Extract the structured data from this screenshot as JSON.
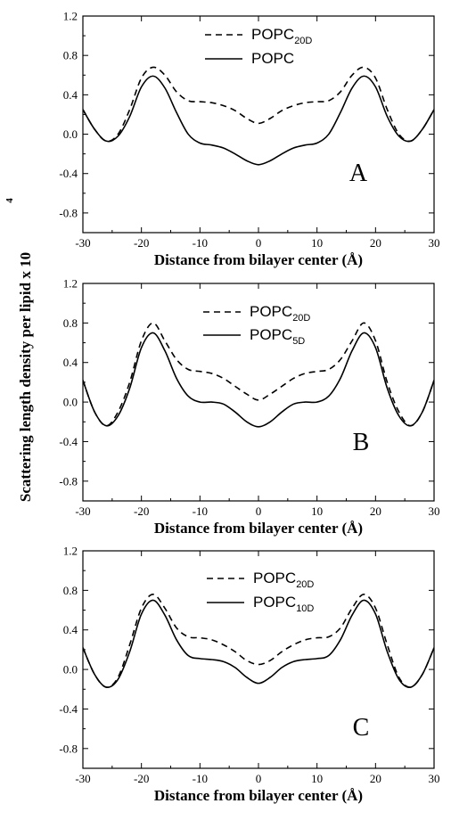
{
  "figure": {
    "ylabel_main": "Scattering length density per lipid x 10",
    "ylabel_exponent": "4"
  },
  "chart_data": [
    {
      "type": "line",
      "panel": "A",
      "xlabel": "Distance from bilayer center (Å)",
      "xlim": [
        -30,
        30
      ],
      "ylim": [
        -1.0,
        1.2
      ],
      "xticks": [
        "-30",
        "-20",
        "-10",
        "0",
        "10",
        "20",
        "30"
      ],
      "yticks": [
        "-0.8",
        "-0.4",
        "0.0",
        "0.4",
        "0.8",
        "1.2"
      ],
      "legend_position": "top-center",
      "series": [
        {
          "name": "POPC",
          "sub": "20D",
          "style": "dashed",
          "x": [
            -30,
            -28,
            -26,
            -24,
            -22,
            -20,
            -18,
            -16,
            -14,
            -12,
            -10,
            -8,
            -6,
            -4,
            -2,
            0,
            2,
            4,
            6,
            8,
            10,
            12,
            14,
            16,
            18,
            20,
            22,
            24,
            26,
            28,
            30
          ],
          "y": [
            0.25,
            0.05,
            -0.07,
            0.0,
            0.25,
            0.57,
            0.68,
            0.6,
            0.43,
            0.34,
            0.33,
            0.32,
            0.29,
            0.24,
            0.16,
            0.11,
            0.16,
            0.24,
            0.29,
            0.32,
            0.33,
            0.34,
            0.43,
            0.6,
            0.68,
            0.57,
            0.25,
            0.0,
            -0.07,
            0.05,
            0.25
          ]
        },
        {
          "name": "POPC",
          "sub": "",
          "style": "solid",
          "x": [
            -30,
            -28,
            -26,
            -24,
            -22,
            -20,
            -18,
            -16,
            -14,
            -12,
            -10,
            -8,
            -6,
            -4,
            -2,
            0,
            2,
            4,
            6,
            8,
            10,
            12,
            14,
            16,
            18,
            20,
            22,
            24,
            26,
            28,
            30
          ],
          "y": [
            0.25,
            0.05,
            -0.07,
            -0.02,
            0.18,
            0.48,
            0.59,
            0.47,
            0.22,
            0.0,
            -0.09,
            -0.11,
            -0.14,
            -0.2,
            -0.27,
            -0.31,
            -0.27,
            -0.2,
            -0.14,
            -0.11,
            -0.09,
            0.0,
            0.22,
            0.47,
            0.59,
            0.48,
            0.18,
            -0.02,
            -0.07,
            0.05,
            0.25
          ]
        }
      ]
    },
    {
      "type": "line",
      "panel": "B",
      "xlabel": "Distance from bilayer center (Å)",
      "xlim": [
        -30,
        30
      ],
      "ylim": [
        -1.0,
        1.2
      ],
      "xticks": [
        "-30",
        "-20",
        "-10",
        "0",
        "10",
        "20",
        "30"
      ],
      "yticks": [
        "-0.8",
        "-0.4",
        "0.0",
        "0.4",
        "0.8",
        "1.2"
      ],
      "legend_position": "top-center",
      "series": [
        {
          "name": "POPC",
          "sub": "20D",
          "style": "dashed",
          "x": [
            -30,
            -28,
            -26,
            -24,
            -22,
            -20,
            -18,
            -16,
            -14,
            -12,
            -10,
            -8,
            -6,
            -4,
            -2,
            0,
            2,
            4,
            6,
            8,
            10,
            12,
            14,
            16,
            18,
            20,
            22,
            24,
            26,
            28,
            30
          ],
          "y": [
            0.22,
            -0.1,
            -0.24,
            -0.1,
            0.2,
            0.62,
            0.8,
            0.62,
            0.43,
            0.33,
            0.31,
            0.29,
            0.24,
            0.16,
            0.08,
            0.02,
            0.08,
            0.16,
            0.24,
            0.29,
            0.31,
            0.33,
            0.43,
            0.62,
            0.8,
            0.62,
            0.2,
            -0.1,
            -0.24,
            -0.1,
            0.22
          ]
        },
        {
          "name": "POPC",
          "sub": "5D",
          "style": "solid",
          "x": [
            -30,
            -28,
            -26,
            -24,
            -22,
            -20,
            -18,
            -16,
            -14,
            -12,
            -10,
            -8,
            -6,
            -4,
            -2,
            0,
            2,
            4,
            6,
            8,
            10,
            12,
            14,
            16,
            18,
            20,
            22,
            24,
            26,
            28,
            30
          ],
          "y": [
            0.22,
            -0.1,
            -0.24,
            -0.14,
            0.14,
            0.55,
            0.7,
            0.52,
            0.24,
            0.06,
            0.0,
            0.0,
            -0.02,
            -0.1,
            -0.2,
            -0.25,
            -0.2,
            -0.1,
            -0.02,
            0.0,
            0.0,
            0.06,
            0.24,
            0.52,
            0.7,
            0.55,
            0.14,
            -0.14,
            -0.24,
            -0.1,
            0.22
          ]
        }
      ]
    },
    {
      "type": "line",
      "panel": "C",
      "xlabel": "Distance from bilayer center (Å)",
      "xlim": [
        -30,
        30
      ],
      "ylim": [
        -1.0,
        1.2
      ],
      "xticks": [
        "-30",
        "-20",
        "-10",
        "0",
        "10",
        "20",
        "30"
      ],
      "yticks": [
        "-0.8",
        "-0.4",
        "0.0",
        "0.4",
        "0.8",
        "1.2"
      ],
      "legend_position": "top-center",
      "series": [
        {
          "name": "POPC",
          "sub": "20D",
          "style": "dashed",
          "x": [
            -30,
            -28,
            -26,
            -24,
            -22,
            -20,
            -18,
            -16,
            -14,
            -12,
            -10,
            -8,
            -6,
            -4,
            -2,
            0,
            2,
            4,
            6,
            8,
            10,
            12,
            14,
            16,
            18,
            20,
            22,
            24,
            26,
            28,
            30
          ],
          "y": [
            0.22,
            -0.05,
            -0.18,
            -0.08,
            0.25,
            0.62,
            0.76,
            0.62,
            0.42,
            0.33,
            0.32,
            0.3,
            0.25,
            0.18,
            0.09,
            0.05,
            0.09,
            0.18,
            0.25,
            0.3,
            0.32,
            0.33,
            0.42,
            0.62,
            0.76,
            0.62,
            0.25,
            -0.08,
            -0.18,
            -0.05,
            0.22
          ]
        },
        {
          "name": "POPC",
          "sub": "10D",
          "style": "solid",
          "x": [
            -30,
            -28,
            -26,
            -24,
            -22,
            -20,
            -18,
            -16,
            -14,
            -12,
            -10,
            -8,
            -6,
            -4,
            -2,
            0,
            2,
            4,
            6,
            8,
            10,
            12,
            14,
            16,
            18,
            20,
            22,
            24,
            26,
            28,
            30
          ],
          "y": [
            0.22,
            -0.05,
            -0.18,
            -0.1,
            0.18,
            0.56,
            0.7,
            0.55,
            0.3,
            0.14,
            0.11,
            0.1,
            0.08,
            0.02,
            -0.08,
            -0.14,
            -0.08,
            0.02,
            0.08,
            0.1,
            0.11,
            0.14,
            0.3,
            0.55,
            0.7,
            0.56,
            0.18,
            -0.1,
            -0.18,
            -0.05,
            0.22
          ]
        }
      ]
    }
  ]
}
